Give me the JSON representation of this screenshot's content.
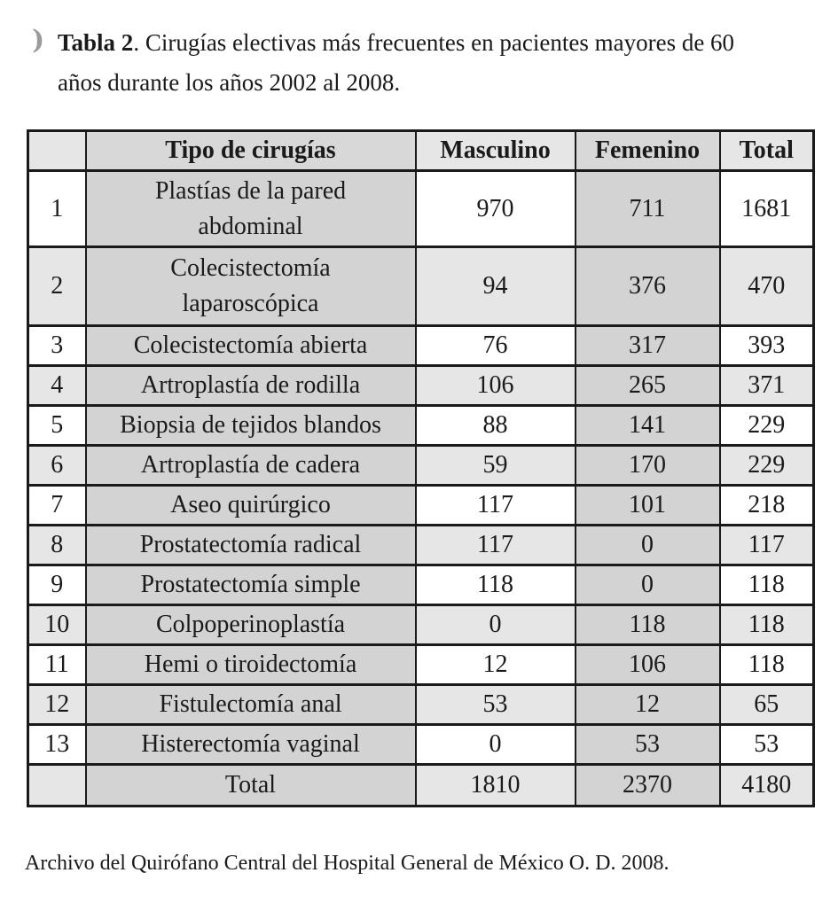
{
  "title": {
    "bullet_icon": ")",
    "bold": "Tabla 2",
    "line1_rest": ". Cirugías electivas más frecuentes en pacientes mayores de 60",
    "line2": "años durante los años 2002 al 2008."
  },
  "table": {
    "headers": {
      "num": "",
      "tipo": "Tipo de cirugías",
      "masculino": "Masculino",
      "femenino": "Femenino",
      "total": "Total"
    },
    "rows": [
      {
        "num": 1,
        "tipo": "Plastías de la pared abdominal",
        "masculino": 970,
        "femenino": 711,
        "total": 1681
      },
      {
        "num": 2,
        "tipo": "Colecistectomía laparoscópica",
        "masculino": 94,
        "femenino": 376,
        "total": 470
      },
      {
        "num": 3,
        "tipo": "Colecistectomía abierta",
        "masculino": 76,
        "femenino": 317,
        "total": 393
      },
      {
        "num": 4,
        "tipo": "Artroplastía de rodilla",
        "masculino": 106,
        "femenino": 265,
        "total": 371
      },
      {
        "num": 5,
        "tipo": "Biopsia de tejidos blandos",
        "masculino": 88,
        "femenino": 141,
        "total": 229
      },
      {
        "num": 6,
        "tipo": "Artroplastía de cadera",
        "masculino": 59,
        "femenino": 170,
        "total": 229
      },
      {
        "num": 7,
        "tipo": "Aseo quirúrgico",
        "masculino": 117,
        "femenino": 101,
        "total": 218
      },
      {
        "num": 8,
        "tipo": "Prostatectomía radical",
        "masculino": 117,
        "femenino": 0,
        "total": 117
      },
      {
        "num": 9,
        "tipo": "Prostatectomía simple",
        "masculino": 118,
        "femenino": 0,
        "total": 118
      },
      {
        "num": 10,
        "tipo": "Colpoperinoplastía",
        "masculino": 0,
        "femenino": 118,
        "total": 118
      },
      {
        "num": 11,
        "tipo": "Hemi o tiroidectomía",
        "masculino": 12,
        "femenino": 106,
        "total": 118
      },
      {
        "num": 12,
        "tipo": "Fistulectomía anal",
        "masculino": 53,
        "femenino": 12,
        "total": 65
      },
      {
        "num": 13,
        "tipo": "Histerectomía vaginal",
        "masculino": 0,
        "femenino": 53,
        "total": 53
      }
    ],
    "total_row": {
      "num": "",
      "tipo": "Total",
      "masculino": 1810,
      "femenino": 2370,
      "total": 4180
    }
  },
  "footer": {
    "source": "Archivo del Quirófano Central del Hospital General de México O. D. 2008."
  },
  "colors": {
    "cell_medium": "#d3d3d3",
    "cell_light": "#e6e6e6",
    "header_medium": "#d8d8d8",
    "border": "#1a1a1a",
    "bullet": "#9b9b9b",
    "background": "#ffffff"
  }
}
